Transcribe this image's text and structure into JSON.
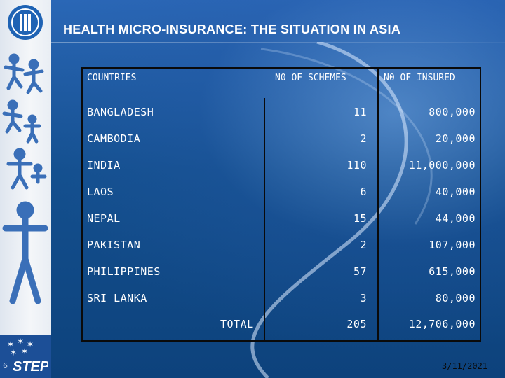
{
  "slide": {
    "title": "HEALTH MICRO-INSURANCE: THE SITUATION IN ASIA",
    "page_number": "6",
    "date": "3/11/2021",
    "logo_text": "STEP"
  },
  "table": {
    "headers": {
      "country": "COUNTRIES",
      "schemes": "N0 OF SCHEMES",
      "insured": "N0 OF INSURED"
    },
    "rows": [
      {
        "country": "BANGLADESH",
        "schemes": "11",
        "insured": "800,000"
      },
      {
        "country": "CAMBODIA",
        "schemes": "2",
        "insured": "20,000"
      },
      {
        "country": "INDIA",
        "schemes": "110",
        "insured": "11,000,000"
      },
      {
        "country": "LAOS",
        "schemes": "6",
        "insured": "40,000"
      },
      {
        "country": "NEPAL",
        "schemes": "15",
        "insured": "44,000"
      },
      {
        "country": "PAKISTAN",
        "schemes": "2",
        "insured": "107,000"
      },
      {
        "country": "PHILIPPINES",
        "schemes": "57",
        "insured": "615,000"
      },
      {
        "country": "SRI LANKA",
        "schemes": "3",
        "insured": "80,000"
      }
    ],
    "total": {
      "label": "TOTAL",
      "schemes": "205",
      "insured": "12,706,000"
    }
  },
  "colors": {
    "background": "#14508f",
    "sidebar": "#f4f6f9",
    "text": "#ffffff",
    "rule": "#0a0a0a"
  }
}
